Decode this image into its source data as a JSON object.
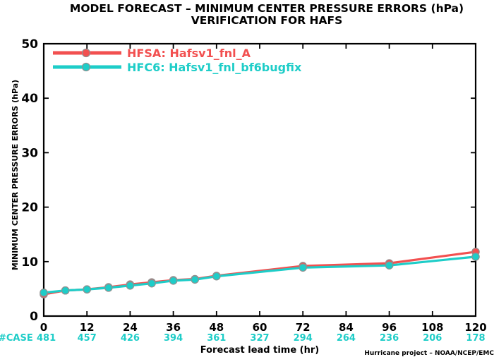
{
  "chart_data": {
    "type": "line",
    "title": "MODEL FORECAST – MINIMUM CENTER PRESSURE ERRORS (hPa)",
    "subtitle": "VERIFICATION FOR HAFS",
    "xlabel": "Forecast lead time (hr)",
    "ylabel": "MINIMUM CENTER PRESSURE ERRORS (hPa)",
    "xlim": [
      0,
      120
    ],
    "ylim": [
      0,
      50
    ],
    "x_ticks": [
      0,
      12,
      24,
      36,
      48,
      60,
      72,
      84,
      96,
      108,
      120
    ],
    "y_ticks": [
      0,
      10,
      20,
      30,
      40,
      50
    ],
    "grid": false,
    "legend_position": "top-left",
    "series": [
      {
        "name": "HFSA: Hafsv1_fnl_A",
        "color": "#f25050",
        "x": [
          0,
          6,
          12,
          18,
          24,
          30,
          36,
          42,
          48,
          72,
          96,
          120
        ],
        "y": [
          4.0,
          4.7,
          4.9,
          5.3,
          5.8,
          6.2,
          6.6,
          6.8,
          7.4,
          9.2,
          9.7,
          11.8
        ]
      },
      {
        "name": "HFC6: Hafsv1_fnl_bf6bugfix",
        "color": "#1ecdc8",
        "x": [
          0,
          6,
          12,
          18,
          24,
          30,
          36,
          42,
          48,
          72,
          96,
          120
        ],
        "y": [
          4.3,
          4.7,
          4.9,
          5.2,
          5.6,
          6.0,
          6.5,
          6.7,
          7.3,
          8.9,
          9.3,
          10.9
        ]
      }
    ],
    "case_label": "#CASE",
    "case_counts": [
      {
        "x": 0,
        "n": "481"
      },
      {
        "x": 12,
        "n": "457"
      },
      {
        "x": 24,
        "n": "426"
      },
      {
        "x": 36,
        "n": "394"
      },
      {
        "x": 48,
        "n": "361"
      },
      {
        "x": 60,
        "n": "327"
      },
      {
        "x": 72,
        "n": "294"
      },
      {
        "x": 84,
        "n": "264"
      },
      {
        "x": 96,
        "n": "236"
      },
      {
        "x": 108,
        "n": "206"
      },
      {
        "x": 120,
        "n": "178"
      }
    ],
    "case_color": "#1ecdc8",
    "footer": "Hurricane project – NOAA/NCEP/EMC"
  }
}
